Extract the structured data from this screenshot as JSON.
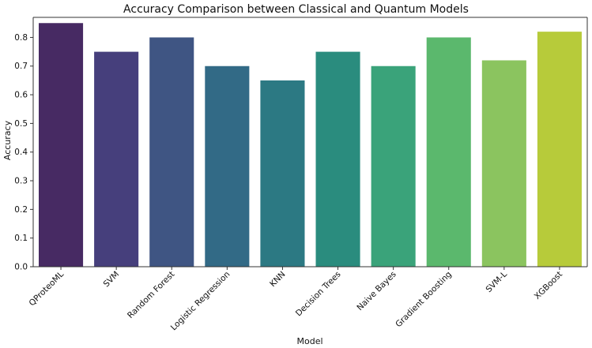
{
  "chart_data": {
    "type": "bar",
    "title": "Accuracy Comparison between Classical and Quantum Models",
    "xlabel": "Model",
    "ylabel": "Accuracy",
    "categories": [
      "QProteoML",
      "SVM",
      "Random Forest",
      "Logistic Regression",
      "KNN",
      "Decision Trees",
      "Naive Bayes",
      "Gradient Boosting",
      "SVM-L",
      "XGBoost"
    ],
    "values": [
      0.85,
      0.75,
      0.8,
      0.7,
      0.65,
      0.75,
      0.7,
      0.8,
      0.72,
      0.82
    ],
    "colors": [
      "#472a63",
      "#463f7c",
      "#3f5583",
      "#326a86",
      "#2c7983",
      "#2a8c7e",
      "#3aa37a",
      "#5bb86d",
      "#8bc45f",
      "#b7cb3a"
    ],
    "ylim": [
      0,
      0.87
    ],
    "yticks": [
      "0.0",
      "0.1",
      "0.2",
      "0.3",
      "0.4",
      "0.5",
      "0.6",
      "0.7",
      "0.8"
    ],
    "grid": false,
    "legend": "none"
  }
}
